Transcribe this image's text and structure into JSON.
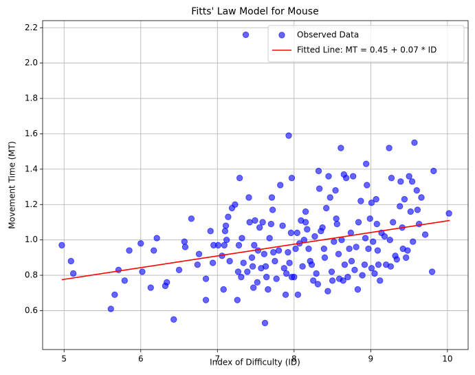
{
  "chart_data": {
    "type": "scatter",
    "title": "Fitts' Law Model for Mouse",
    "x_label": "Index of Difficulty (ID)",
    "y_label": "Movement Time (MT)",
    "xlim": [
      4.72,
      10.27
    ],
    "ylim": [
      0.38,
      2.24
    ],
    "xticks": [
      5,
      6,
      7,
      8,
      9,
      10
    ],
    "yticks": [
      0.6,
      0.8,
      {
        "value": 1,
        "label": "1.0"
      },
      1.2,
      1.4,
      1.6,
      1.8,
      {
        "value": 2,
        "label": "2.0"
      },
      2.2
    ],
    "grid": true,
    "legend": "upper right",
    "series": [
      {
        "name": "Observed Data",
        "color": "#0000ff",
        "type": "scatter",
        "x": [
          4.97,
          5.09,
          5.12,
          5.61,
          5.66,
          5.71,
          5.79,
          5.85,
          6.0,
          6.02,
          6.13,
          6.17,
          6.21,
          6.32,
          6.34,
          6.43,
          6.5,
          6.57,
          6.58,
          6.66,
          6.74,
          6.76,
          6.85,
          6.85,
          6.91,
          6.94,
          6.95,
          7.01,
          7.06,
          7.08,
          7.09,
          7.1,
          7.11,
          7.12,
          7.14,
          7.16,
          7.19,
          7.23,
          7.26,
          7.27,
          7.28,
          7.29,
          7.31,
          7.32,
          7.34,
          7.37,
          7.39,
          7.41,
          7.42,
          7.45,
          7.46,
          7.47,
          7.48,
          7.49,
          7.52,
          7.53,
          7.55,
          7.57,
          7.59,
          7.61,
          7.62,
          7.63,
          7.64,
          7.66,
          7.68,
          7.7,
          7.71,
          7.72,
          7.73,
          7.75,
          7.77,
          7.8,
          7.82,
          7.85,
          7.87,
          7.89,
          7.9,
          7.92,
          7.93,
          7.94,
          7.96,
          7.97,
          7.97,
          8.0,
          8.02,
          8.04,
          8.05,
          8.07,
          8.09,
          8.11,
          8.13,
          8.15,
          8.15,
          8.17,
          8.19,
          8.21,
          8.23,
          8.25,
          8.27,
          8.29,
          8.31,
          8.32,
          8.33,
          8.35,
          8.37,
          8.39,
          8.4,
          8.42,
          8.44,
          8.45,
          8.47,
          8.49,
          8.5,
          8.52,
          8.54,
          8.55,
          8.56,
          8.58,
          8.59,
          8.61,
          8.62,
          8.64,
          8.65,
          8.66,
          8.68,
          8.7,
          8.72,
          8.74,
          8.75,
          8.77,
          8.79,
          8.81,
          8.83,
          8.84,
          8.87,
          8.89,
          8.92,
          8.93,
          8.94,
          8.95,
          8.97,
          8.99,
          9.01,
          9.01,
          9.03,
          9.05,
          9.07,
          9.08,
          9.09,
          9.1,
          9.12,
          9.14,
          9.18,
          9.2,
          9.24,
          9.25,
          9.26,
          9.27,
          9.29,
          9.32,
          9.34,
          9.38,
          9.39,
          9.41,
          9.42,
          9.44,
          9.46,
          9.48,
          9.5,
          9.52,
          9.54,
          9.55,
          9.57,
          9.6,
          9.61,
          9.63,
          9.66,
          9.71,
          9.8,
          9.82,
          10.02
        ],
        "values": [
          0.97,
          0.88,
          0.81,
          0.61,
          0.69,
          0.83,
          0.77,
          0.94,
          0.98,
          0.82,
          0.73,
          0.94,
          1.01,
          0.74,
          0.76,
          0.55,
          0.83,
          0.99,
          0.96,
          1.12,
          0.86,
          0.92,
          0.66,
          0.78,
          1.05,
          0.87,
          0.97,
          0.97,
          0.91,
          0.72,
          0.97,
          1.05,
          1.08,
          1.0,
          1.13,
          0.88,
          1.18,
          1.2,
          0.66,
          0.82,
          0.97,
          1.35,
          0.79,
          1.01,
          0.87,
          2.16,
          0.82,
          1.24,
          1.1,
          0.9,
          0.85,
          0.73,
          0.97,
          1.11,
          0.76,
          0.94,
          1.07,
          0.84,
          1.1,
          0.92,
          0.53,
          0.85,
          0.79,
          0.72,
          1.01,
          1.09,
          1.24,
          1.17,
          0.93,
          0.88,
          0.78,
          0.94,
          1.31,
          1.08,
          0.84,
          0.69,
          0.81,
          0.93,
          1.59,
          0.87,
          1.04,
          1.35,
          0.79,
          0.79,
          0.95,
          1.04,
          0.69,
          0.98,
          1.11,
          0.85,
          1.0,
          1.16,
          1.1,
          1.06,
          0.95,
          0.88,
          0.86,
          0.77,
          1.02,
          0.81,
          0.75,
          1.39,
          1.29,
          1.05,
          1.07,
          0.95,
          0.9,
          1.18,
          0.71,
          1.36,
          1.24,
          0.82,
          0.77,
          0.99,
          1.28,
          1.12,
          1.09,
          0.92,
          0.78,
          1.52,
          1.0,
          0.77,
          1.37,
          0.86,
          1.35,
          0.79,
          0.95,
          1.04,
          0.88,
          1.36,
          0.83,
          0.96,
          0.72,
          1.1,
          1.22,
          0.8,
          0.86,
          1.01,
          1.43,
          1.31,
          0.95,
          1.12,
          0.84,
          1.21,
          0.99,
          0.81,
          1.23,
          1.09,
          0.94,
          0.86,
          0.77,
          1.04,
          1.02,
          0.86,
          1.52,
          1.0,
          0.85,
          1.35,
          1.1,
          0.91,
          0.89,
          1.19,
          1.33,
          1.07,
          0.95,
          1.23,
          0.9,
          0.94,
          1.36,
          1.16,
          1.33,
          0.99,
          1.55,
          1.28,
          1.17,
          1.09,
          1.24,
          1.03,
          0.82,
          1.39,
          1.15
        ]
      },
      {
        "name": "Fitted Line: MT = 0.45 + 0.07 * ID",
        "color": "#ff0000",
        "type": "line",
        "x": [
          4.97,
          10.03
        ],
        "values": [
          0.775,
          1.11
        ]
      }
    ]
  }
}
